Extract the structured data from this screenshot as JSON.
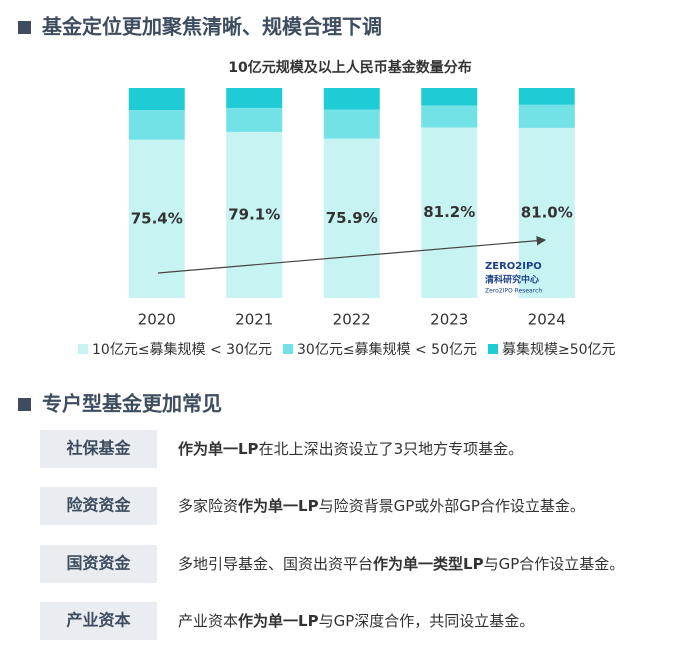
{
  "header": {
    "title": "基金定位更加聚焦清晰、规模合理下调"
  },
  "chart_data": {
    "type": "bar",
    "stacked": true,
    "title": "10亿元规模及以上人民币基金数量分布",
    "categories": [
      "2020",
      "2021",
      "2022",
      "2023",
      "2024"
    ],
    "ylim": [
      0,
      100
    ],
    "series": [
      {
        "name": "10亿元≤募集规模 < 30亿元",
        "color": "#c8f3f3",
        "values": [
          75.4,
          79.1,
          75.9,
          81.2,
          81.0
        ],
        "value_labels": [
          "75.4%",
          "79.1%",
          "75.9%",
          "81.2%",
          "81.0%"
        ]
      },
      {
        "name": "30亿元≤募集规模 < 50亿元",
        "color": "#72e2e7",
        "values": [
          14.1,
          11.4,
          13.8,
          10.5,
          11.0
        ]
      },
      {
        "name": "募集规模≥50亿元",
        "color": "#1fccd6",
        "values": [
          10.5,
          9.5,
          10.3,
          8.3,
          8.0
        ]
      }
    ],
    "logo": {
      "brand": "ZERO2IPO",
      "name": "清科研究中心",
      "sub": "Zero2IPO Research"
    }
  },
  "section2": {
    "title": "专户型基金更加常见",
    "rows": [
      {
        "label": "社保基金",
        "text": [
          {
            "text": "作为单一LP",
            "bold": true
          },
          {
            "text": "在北上深出资设立了3只地方专项基金。",
            "bold": false
          }
        ]
      },
      {
        "label": "险资资金",
        "text": [
          {
            "text": "多家险资",
            "bold": false
          },
          {
            "text": "作为单一LP",
            "bold": true
          },
          {
            "text": "与险资背景GP或外部GP合作设立基金。",
            "bold": false
          }
        ]
      },
      {
        "label": "国资资金",
        "text": [
          {
            "text": "多地引导基金、国资出资平台",
            "bold": false
          },
          {
            "text": "作为单一类型LP",
            "bold": true
          },
          {
            "text": "与GP合作设立基金。",
            "bold": false
          }
        ]
      },
      {
        "label": "产业资本",
        "text": [
          {
            "text": "产业资本",
            "bold": false
          },
          {
            "text": "作为单一LP",
            "bold": true
          },
          {
            "text": "与GP深度合作，共同设立基金。",
            "bold": false
          }
        ]
      }
    ]
  }
}
